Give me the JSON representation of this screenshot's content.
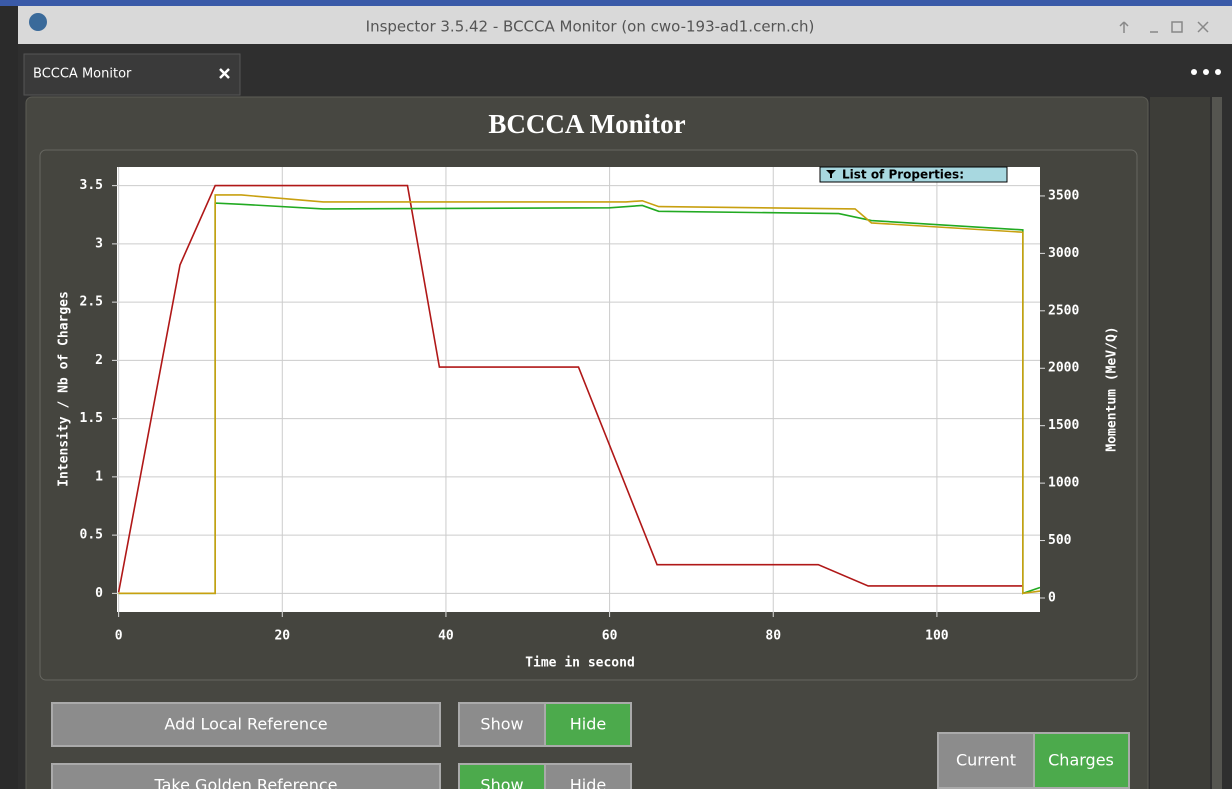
{
  "window": {
    "title": "Inspector 3.5.42 - BCCCA Monitor (on cwo-193-ad1.cern.ch)"
  },
  "tab": {
    "label": "BCCCA Monitor"
  },
  "panel": {
    "title": "BCCCA Monitor"
  },
  "chart_data": {
    "type": "line",
    "x_label": "Time in second",
    "y_label": "Intensity / Nb of Charges",
    "y2_label": "Momentum (MeV/Q)",
    "legend_title": "List of Properties:",
    "xlim": [
      -0.2,
      112.6
    ],
    "xticks": [
      0,
      20,
      40,
      60,
      80,
      100
    ],
    "ylim": [
      -0.16,
      3.66
    ],
    "yticks": [
      0,
      0.5,
      1,
      1.5,
      2,
      2.5,
      3,
      3.5
    ],
    "y2lim": [
      -122,
      3752
    ],
    "y2ticks": [
      0,
      500,
      1000,
      1500,
      2000,
      2500,
      3000,
      3500
    ],
    "grid": true,
    "series": [
      {
        "color": "#b01818",
        "axis": "y2",
        "x": [
          0,
          7.5,
          11.8,
          35.3,
          39.2,
          56.2,
          65.8,
          85.5,
          91.6,
          110.5
        ],
        "values": [
          50,
          2900,
          3590,
          3590,
          2010,
          2010,
          290,
          290,
          105,
          105
        ]
      },
      {
        "color": "#22aa22",
        "x": [
          0,
          11.8,
          11.8,
          15,
          25,
          60,
          64,
          66,
          88,
          92,
          110.5,
          110.5,
          112.6
        ],
        "values": [
          0,
          0,
          3.35,
          3.34,
          3.3,
          3.31,
          3.33,
          3.28,
          3.26,
          3.2,
          3.12,
          0,
          0.05
        ]
      },
      {
        "color": "#c8a010",
        "x": [
          0,
          11.8,
          11.8,
          15,
          25,
          62,
          64,
          66,
          90,
          92,
          110.5,
          110.5,
          112.6
        ],
        "values": [
          0,
          0,
          3.42,
          3.42,
          3.36,
          3.36,
          3.37,
          3.32,
          3.3,
          3.18,
          3.1,
          0,
          0.02
        ]
      }
    ]
  },
  "controls": {
    "add_local": "Add Local Reference",
    "local_show": "Show",
    "local_hide": "Hide",
    "take_golden": "Take Golden Reference",
    "golden_show": "Show",
    "golden_hide": "Hide",
    "mode_current": "Current",
    "mode_charges": "Charges"
  }
}
